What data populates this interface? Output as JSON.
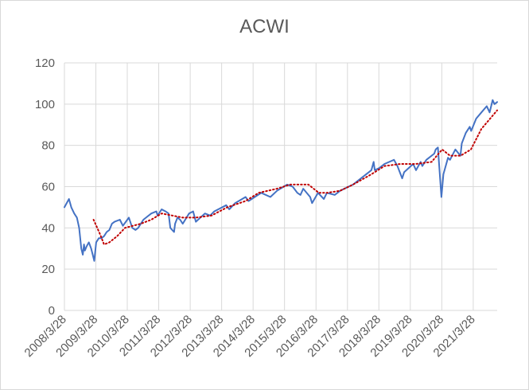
{
  "chart_data": {
    "type": "line",
    "title": "ACWI",
    "xlabel": "",
    "ylabel": "",
    "x_tick_labels": [
      "2008/3/28",
      "2009/3/28",
      "2010/3/28",
      "2011/3/28",
      "2012/3/28",
      "2013/3/28",
      "2014/3/28",
      "2015/3/28",
      "2016/3/28",
      "2017/3/28",
      "2018/3/28",
      "2019/3/28",
      "2020/3/28",
      "2021/3/28"
    ],
    "y_tick_labels": [
      "0",
      "20",
      "40",
      "60",
      "80",
      "100",
      "120"
    ],
    "ylim": [
      0,
      120
    ],
    "xlim": [
      "2008-03-28",
      "2021-12-31"
    ],
    "grid": true,
    "legend": "none",
    "series": [
      {
        "role": "price",
        "color": "#4472C4",
        "style": "solid",
        "x": [
          "2008-03-28",
          "2008-05-20",
          "2008-06-15",
          "2008-07-20",
          "2008-08-20",
          "2008-09-15",
          "2008-10-10",
          "2008-10-27",
          "2008-11-10",
          "2008-11-20",
          "2008-12-10",
          "2009-01-06",
          "2009-02-01",
          "2009-03-09",
          "2009-04-01",
          "2009-05-01",
          "2009-06-01",
          "2009-07-01",
          "2009-08-01",
          "2009-09-01",
          "2009-10-01",
          "2009-11-01",
          "2010-01-01",
          "2010-02-05",
          "2010-04-15",
          "2010-05-25",
          "2010-07-01",
          "2010-08-01",
          "2010-09-01",
          "2010-10-01",
          "2010-11-01",
          "2011-01-01",
          "2011-03-01",
          "2011-03-15",
          "2011-05-01",
          "2011-06-15",
          "2011-07-20",
          "2011-08-10",
          "2011-09-22",
          "2011-10-04",
          "2011-11-01",
          "2011-12-01",
          "2012-01-01",
          "2012-03-15",
          "2012-05-01",
          "2012-06-01",
          "2012-09-15",
          "2012-11-15",
          "2013-01-01",
          "2013-05-20",
          "2013-06-24",
          "2013-09-01",
          "2013-12-31",
          "2014-02-03",
          "2014-07-01",
          "2014-10-15",
          "2014-12-31",
          "2015-04-28",
          "2015-07-01",
          "2015-08-24",
          "2015-09-29",
          "2015-11-01",
          "2016-01-20",
          "2016-02-11",
          "2016-04-20",
          "2016-06-27",
          "2016-08-01",
          "2016-11-01",
          "2017-01-01",
          "2017-06-01",
          "2017-09-01",
          "2017-12-31",
          "2018-01-26",
          "2018-02-08",
          "2018-04-01",
          "2018-06-01",
          "2018-09-20",
          "2018-10-29",
          "2018-12-24",
          "2019-01-15",
          "2019-04-30",
          "2019-06-03",
          "2019-07-26",
          "2019-08-15",
          "2019-10-01",
          "2019-12-31",
          "2020-01-17",
          "2020-02-12",
          "2020-03-23",
          "2020-04-15",
          "2020-06-08",
          "2020-07-01",
          "2020-09-01",
          "2020-10-30",
          "2020-11-15",
          "2020-12-31",
          "2021-02-15",
          "2021-03-04",
          "2021-05-01",
          "2021-07-01",
          "2021-09-01",
          "2021-10-04",
          "2021-11-08",
          "2021-11-30",
          "2021-12-31"
        ],
        "y": [
          50,
          54,
          50,
          47,
          45,
          40,
          30,
          27,
          32,
          29,
          31,
          33,
          30,
          24,
          33,
          35,
          35,
          36,
          38,
          39,
          42,
          43,
          44,
          41,
          45,
          40,
          39,
          40,
          42,
          44,
          45,
          47,
          48,
          46,
          49,
          48,
          47,
          40,
          38,
          42,
          45,
          44,
          42,
          47,
          48,
          43,
          47,
          46,
          48,
          51,
          49,
          52,
          55,
          53,
          57,
          55,
          58,
          61,
          60,
          57,
          56,
          59,
          55,
          52,
          57,
          54,
          57,
          56,
          58,
          61,
          64,
          68,
          72,
          68,
          69,
          71,
          73,
          70,
          64,
          67,
          71,
          68,
          72,
          70,
          73,
          76,
          78,
          79,
          55,
          66,
          74,
          73,
          78,
          75,
          81,
          86,
          89,
          87,
          93,
          96,
          99,
          96,
          102,
          100,
          101
        ]
      },
      {
        "role": "moving-average",
        "color": "#C00000",
        "style": "dotted",
        "x": [
          "2009-03-01",
          "2009-05-15",
          "2009-07-01",
          "2009-09-01",
          "2009-12-01",
          "2010-03-01",
          "2010-06-01",
          "2010-09-01",
          "2011-01-01",
          "2011-05-01",
          "2011-09-01",
          "2012-01-01",
          "2012-06-01",
          "2012-12-01",
          "2013-06-01",
          "2013-12-31",
          "2014-06-01",
          "2014-12-31",
          "2015-06-01",
          "2015-12-31",
          "2016-05-01",
          "2016-08-01",
          "2017-01-01",
          "2017-06-01",
          "2018-01-01",
          "2018-06-01",
          "2018-12-01",
          "2019-06-01",
          "2019-12-01",
          "2020-04-01",
          "2020-07-01",
          "2020-11-01",
          "2021-03-01",
          "2021-07-01",
          "2021-12-31"
        ],
        "y": [
          44,
          37,
          32,
          33,
          36,
          40,
          41,
          42,
          44,
          47,
          46,
          45,
          45,
          46,
          50,
          53,
          57,
          59,
          61,
          61,
          57,
          57,
          58,
          61,
          66,
          70,
          71,
          71,
          72,
          78,
          75,
          75,
          78,
          88,
          97
        ]
      }
    ]
  }
}
